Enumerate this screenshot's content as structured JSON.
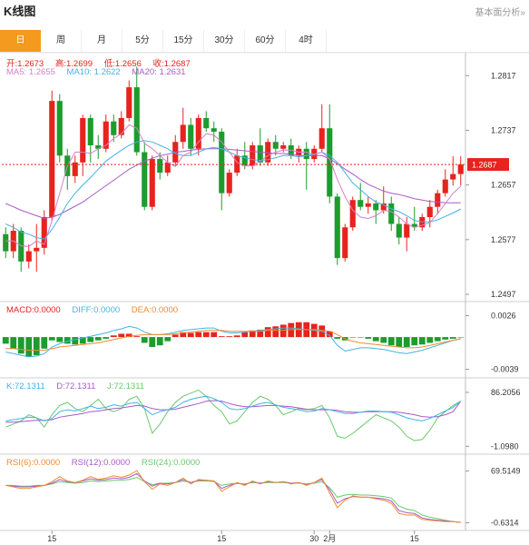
{
  "header": {
    "title": "K线图",
    "analysis_link": "基本面分析»"
  },
  "tabs": [
    "日",
    "周",
    "月",
    "5分",
    "15分",
    "30分",
    "60分",
    "4时"
  ],
  "active_tab": 0,
  "colors": {
    "up": "#e8221d",
    "down": "#1c9c2c",
    "ma5": "#d580c8",
    "ma10": "#45b3e3",
    "ma20": "#a95ac8",
    "macd": "#e8221d",
    "diff": "#45b3e3",
    "dea": "#f08a30",
    "k": "#45b3e3",
    "d": "#a95ac8",
    "j": "#6cc86c",
    "rsi6": "#f08a30",
    "rsi12": "#a95ac8",
    "rsi24": "#6cc86c",
    "accent": "#f39a1f"
  },
  "price_legend": {
    "open_label": "开:",
    "open": "1.2673",
    "high_label": "高:",
    "high": "1.2699",
    "low_label": "低:",
    "low": "1.2656",
    "close_label": "收:",
    "close": "1.2687",
    "ma5_label": "MA5:",
    "ma5": "1.2655",
    "ma10_label": "MA10:",
    "ma10": "1.2622",
    "ma20_label": "MA20:",
    "ma20": "1.2631"
  },
  "macd_legend": {
    "macd_label": "MACD:",
    "macd": "0.0000",
    "diff_label": "DIFF:",
    "diff": "0.0000",
    "dea_label": "DEA:",
    "dea": "0.0000"
  },
  "kdj_legend": {
    "k_label": "K:",
    "k": "72.1311",
    "d_label": "D:",
    "d": "72.1311",
    "j_label": "J:",
    "j": "72.1311"
  },
  "rsi_legend": {
    "rsi6_label": "RSI(6):",
    "rsi6": "0.0000",
    "rsi12_label": "RSI(12):",
    "rsi12": "0.0000",
    "rsi24_label": "RSI(24):",
    "rsi24": "0.0000"
  },
  "chart_data": [
    {
      "type": "candlestick",
      "title": "",
      "y_ticks": [
        1.2817,
        1.2737,
        1.2657,
        1.2577,
        1.2497
      ],
      "ylim": [
        1.2497,
        1.2832
      ],
      "current_price": 1.2687,
      "x_ticks": [
        "15",
        "15",
        "30",
        "2月",
        "15"
      ],
      "x_tick_index": [
        6,
        28,
        40,
        42,
        53
      ],
      "candles": [
        [
          1.2585,
          1.256,
          1.2595,
          1.255
        ],
        [
          1.256,
          1.259,
          1.26,
          1.255
        ],
        [
          1.259,
          1.2545,
          1.2595,
          1.253
        ],
        [
          1.2545,
          1.256,
          1.257,
          1.2535
        ],
        [
          1.256,
          1.2565,
          1.26,
          1.253
        ],
        [
          1.2565,
          1.261,
          1.262,
          1.2555
        ],
        [
          1.261,
          1.278,
          1.2795,
          1.2605
        ],
        [
          1.278,
          1.27,
          1.279,
          1.269
        ],
        [
          1.27,
          1.267,
          1.271,
          1.265
        ],
        [
          1.267,
          1.269,
          1.27,
          1.266
        ],
        [
          1.269,
          1.2755,
          1.276,
          1.267
        ],
        [
          1.2755,
          1.2715,
          1.276,
          1.269
        ],
        [
          1.2715,
          1.271,
          1.273,
          1.2695
        ],
        [
          1.271,
          1.275,
          1.276,
          1.2705
        ],
        [
          1.275,
          1.273,
          1.276,
          1.272
        ],
        [
          1.273,
          1.2755,
          1.2765,
          1.2725
        ],
        [
          1.2755,
          1.28,
          1.281,
          1.275
        ],
        [
          1.28,
          1.2705,
          1.283,
          1.27
        ],
        [
          1.2705,
          1.2625,
          1.272,
          1.262
        ],
        [
          1.2625,
          1.2695,
          1.27,
          1.262
        ],
        [
          1.2695,
          1.2675,
          1.2705,
          1.2665
        ],
        [
          1.2675,
          1.269,
          1.27,
          1.267
        ],
        [
          1.269,
          1.272,
          1.273,
          1.2685
        ],
        [
          1.272,
          1.2745,
          1.277,
          1.271
        ],
        [
          1.2745,
          1.271,
          1.2755,
          1.27
        ],
        [
          1.271,
          1.2755,
          1.276,
          1.27
        ],
        [
          1.2755,
          1.274,
          1.2765,
          1.2735
        ],
        [
          1.274,
          1.2735,
          1.275,
          1.272
        ],
        [
          1.2735,
          1.2645,
          1.274,
          1.262
        ],
        [
          1.2645,
          1.2675,
          1.268,
          1.264
        ],
        [
          1.2675,
          1.27,
          1.271,
          1.267
        ],
        [
          1.27,
          1.2685,
          1.272,
          1.268
        ],
        [
          1.2685,
          1.2715,
          1.272,
          1.268
        ],
        [
          1.2715,
          1.269,
          1.274,
          1.2685
        ],
        [
          1.269,
          1.272,
          1.2725,
          1.2685
        ],
        [
          1.272,
          1.271,
          1.273,
          1.27
        ],
        [
          1.271,
          1.2715,
          1.272,
          1.2705
        ],
        [
          1.2715,
          1.27,
          1.2725,
          1.2695
        ],
        [
          1.27,
          1.271,
          1.2715,
          1.269
        ],
        [
          1.271,
          1.2695,
          1.272,
          1.265
        ],
        [
          1.2695,
          1.271,
          1.2715,
          1.269
        ],
        [
          1.271,
          1.274,
          1.2775,
          1.2705
        ],
        [
          1.274,
          1.264,
          1.2775,
          1.263
        ],
        [
          1.264,
          1.255,
          1.2645,
          1.254
        ],
        [
          1.255,
          1.2595,
          1.26,
          1.2545
        ],
        [
          1.2595,
          1.2635,
          1.264,
          1.259
        ],
        [
          1.2635,
          1.2625,
          1.266,
          1.262
        ],
        [
          1.2625,
          1.263,
          1.264,
          1.2615
        ],
        [
          1.263,
          1.262,
          1.2635,
          1.26
        ],
        [
          1.262,
          1.263,
          1.2655,
          1.2615
        ],
        [
          1.263,
          1.26,
          1.264,
          1.259
        ],
        [
          1.26,
          1.258,
          1.261,
          1.257
        ],
        [
          1.258,
          1.26,
          1.261,
          1.256
        ],
        [
          1.26,
          1.2595,
          1.2625,
          1.259
        ],
        [
          1.2595,
          1.261,
          1.2615,
          1.259
        ],
        [
          1.261,
          1.2625,
          1.2635,
          1.2595
        ],
        [
          1.2625,
          1.2645,
          1.265,
          1.2615
        ],
        [
          1.2645,
          1.2665,
          1.268,
          1.264
        ],
        [
          1.2665,
          1.2673,
          1.2699,
          1.2656
        ],
        [
          1.2673,
          1.2687,
          1.2699,
          1.2656
        ]
      ],
      "ma5": [
        1.2575,
        1.2575,
        1.2568,
        1.2567,
        1.2575,
        1.257,
        1.2605,
        1.2645,
        1.2685,
        1.2705,
        1.2705,
        1.2703,
        1.271,
        1.2715,
        1.2725,
        1.2732,
        1.2745,
        1.274,
        1.2718,
        1.271,
        1.27,
        1.269,
        1.2684,
        1.27,
        1.2705,
        1.272,
        1.2732,
        1.273,
        1.272,
        1.2705,
        1.269,
        1.2685,
        1.2685,
        1.2692,
        1.27,
        1.2705,
        1.2708,
        1.2708,
        1.2705,
        1.2705,
        1.2702,
        1.2705,
        1.2695,
        1.2665,
        1.264,
        1.262,
        1.261,
        1.2608,
        1.2612,
        1.262,
        1.2618,
        1.261,
        1.26,
        1.2595,
        1.2598,
        1.2602,
        1.2615,
        1.263,
        1.2645,
        1.2655
      ],
      "ma10": [
        1.26,
        1.2595,
        1.2588,
        1.2585,
        1.258,
        1.2578,
        1.2592,
        1.261,
        1.263,
        1.2645,
        1.2657,
        1.2668,
        1.268,
        1.2692,
        1.27,
        1.2708,
        1.2715,
        1.272,
        1.2722,
        1.272,
        1.2715,
        1.271,
        1.2703,
        1.27,
        1.27,
        1.2705,
        1.271,
        1.2712,
        1.271,
        1.2705,
        1.27,
        1.2697,
        1.2694,
        1.2693,
        1.2694,
        1.2697,
        1.27,
        1.27,
        1.2698,
        1.27,
        1.2702,
        1.2705,
        1.27,
        1.269,
        1.2675,
        1.266,
        1.265,
        1.264,
        1.2632,
        1.2628,
        1.2622,
        1.2618,
        1.2612,
        1.2605,
        1.2603,
        1.2603,
        1.2606,
        1.2611,
        1.2616,
        1.2622
      ],
      "ma20": [
        1.263,
        1.2625,
        1.262,
        1.2616,
        1.2612,
        1.2608,
        1.261,
        1.2614,
        1.262,
        1.2626,
        1.2632,
        1.264,
        1.2648,
        1.2656,
        1.2664,
        1.2672,
        1.268,
        1.2686,
        1.2692,
        1.2696,
        1.27,
        1.2702,
        1.2705,
        1.2706,
        1.2708,
        1.2709,
        1.271,
        1.271,
        1.271,
        1.2709,
        1.2708,
        1.2707,
        1.2706,
        1.2705,
        1.2704,
        1.2703,
        1.2703,
        1.2702,
        1.27,
        1.27,
        1.27,
        1.27,
        1.2695,
        1.2688,
        1.268,
        1.2673,
        1.2665,
        1.2658,
        1.2653,
        1.2648,
        1.2645,
        1.2643,
        1.264,
        1.2637,
        1.2635,
        1.2633,
        1.2632,
        1.2631,
        1.2631,
        1.2631
      ]
    },
    {
      "type": "bar",
      "title": "MACD",
      "y_ticks": [
        0.0026,
        -0.0039
      ],
      "ylim": [
        -0.0045,
        0.0032
      ],
      "macd": [
        -0.0008,
        -0.0014,
        -0.002,
        -0.0024,
        -0.0022,
        -0.0014,
        -0.0004,
        -0.0006,
        -0.0008,
        -0.0009,
        -0.0008,
        -0.0006,
        -0.0004,
        -0.0002,
        0.0002,
        0.0004,
        0.0004,
        0.0001,
        -0.0007,
        -0.0012,
        -0.001,
        -0.0005,
        0.0003,
        0.0006,
        0.0005,
        0.0006,
        0.0006,
        0.0006,
        0.0001,
        0.0001,
        0.0002,
        0.0006,
        0.0008,
        0.0009,
        0.0012,
        0.0013,
        0.0015,
        0.0017,
        0.0018,
        0.0018,
        0.0016,
        0.0014,
        0.0007,
        -0.0002,
        -0.0004,
        0.0,
        0.0,
        -0.0002,
        -0.0005,
        -0.0007,
        -0.001,
        -0.0012,
        -0.0012,
        -0.001,
        -0.0009,
        -0.0007,
        -0.0005,
        -0.0003,
        -0.0002,
        0.0
      ],
      "diff": [
        -0.0018,
        -0.002,
        -0.0022,
        -0.0024,
        -0.0023,
        -0.002,
        -0.0012,
        -0.0008,
        -0.0005,
        -0.0003,
        -0.0001,
        0.0001,
        0.0003,
        0.0005,
        0.0008,
        0.001,
        0.0013,
        0.0011,
        0.0006,
        0.0003,
        0.0003,
        0.0004,
        0.0006,
        0.0008,
        0.0009,
        0.001,
        0.0011,
        0.0011,
        0.0007,
        0.0005,
        0.0005,
        0.0006,
        0.0007,
        0.0008,
        0.0009,
        0.001,
        0.0011,
        0.0011,
        0.001,
        0.0009,
        0.0008,
        0.0007,
        0.0002,
        -0.001,
        -0.0017,
        -0.0015,
        -0.0013,
        -0.0013,
        -0.0014,
        -0.0015,
        -0.0017,
        -0.0019,
        -0.002,
        -0.0018,
        -0.0016,
        -0.0013,
        -0.001,
        -0.0007,
        -0.0004,
        -0.0002
      ],
      "dea": [
        -0.0014,
        -0.0014,
        -0.0015,
        -0.0016,
        -0.0016,
        -0.0016,
        -0.0014,
        -0.0012,
        -0.0011,
        -0.001,
        -0.0009,
        -0.0008,
        -0.0007,
        -0.0005,
        -0.0003,
        -0.0001,
        0.0001,
        0.0002,
        0.0003,
        0.0003,
        0.0003,
        0.0003,
        0.0004,
        0.0005,
        0.0006,
        0.0007,
        0.0008,
        0.0008,
        0.0008,
        0.0007,
        0.0007,
        0.0007,
        0.0007,
        0.0007,
        0.0008,
        0.0008,
        0.0008,
        0.0009,
        0.0009,
        0.0009,
        0.0009,
        0.0008,
        0.0007,
        0.0003,
        -0.0002,
        -0.0005,
        -0.0007,
        -0.0008,
        -0.0009,
        -0.001,
        -0.0011,
        -0.0012,
        -0.0013,
        -0.0013,
        -0.0012,
        -0.001,
        -0.0008,
        -0.0006,
        -0.0004,
        -0.0002
      ]
    },
    {
      "type": "line",
      "title": "KDJ",
      "y_ticks": [
        86.2056,
        -1.098
      ],
      "ylim": [
        -8,
        95
      ],
      "k": [
        40,
        42,
        44,
        46,
        45,
        40,
        44,
        55,
        58,
        56,
        60,
        64,
        60,
        62,
        66,
        64,
        68,
        70,
        60,
        50,
        55,
        58,
        62,
        70,
        75,
        78,
        80,
        76,
        70,
        60,
        58,
        60,
        64,
        68,
        70,
        66,
        62,
        60,
        58,
        55,
        56,
        60,
        58,
        55,
        52,
        52,
        54,
        56,
        56,
        55,
        54,
        50,
        45,
        42,
        40,
        44,
        50,
        56,
        62,
        72
      ],
      "d": [
        38,
        38,
        39,
        40,
        41,
        41,
        42,
        46,
        48,
        50,
        52,
        55,
        56,
        58,
        60,
        61,
        63,
        65,
        64,
        60,
        58,
        58,
        59,
        62,
        65,
        68,
        72,
        73,
        72,
        68,
        65,
        63,
        63,
        64,
        65,
        65,
        64,
        63,
        61,
        59,
        58,
        58,
        58,
        57,
        55,
        54,
        54,
        55,
        55,
        55,
        55,
        54,
        52,
        50,
        47,
        46,
        47,
        50,
        55,
        72
      ],
      "j": [
        30,
        35,
        40,
        50,
        45,
        30,
        50,
        65,
        70,
        60,
        55,
        65,
        75,
        60,
        55,
        60,
        75,
        80,
        60,
        20,
        35,
        55,
        70,
        80,
        85,
        90,
        80,
        65,
        55,
        35,
        40,
        55,
        70,
        80,
        75,
        65,
        50,
        55,
        60,
        58,
        60,
        65,
        45,
        15,
        12,
        20,
        30,
        40,
        50,
        45,
        40,
        30,
        15,
        8,
        10,
        25,
        45,
        55,
        65,
        72
      ]
    },
    {
      "type": "line",
      "title": "RSI",
      "y_ticks": [
        69.5149,
        -0.6314
      ],
      "ylim": [
        -6,
        80
      ],
      "rsi6": [
        50,
        48,
        46,
        46,
        48,
        50,
        55,
        62,
        56,
        54,
        57,
        62,
        58,
        60,
        63,
        61,
        64,
        70,
        55,
        45,
        52,
        50,
        54,
        60,
        52,
        58,
        57,
        56,
        42,
        48,
        54,
        50,
        56,
        52,
        56,
        54,
        55,
        52,
        54,
        50,
        54,
        60,
        40,
        20,
        30,
        36,
        34,
        34,
        32,
        30,
        26,
        12,
        10,
        10,
        4,
        3,
        2,
        1,
        1,
        0
      ],
      "rsi12": [
        50,
        49,
        48,
        48,
        49,
        50,
        53,
        58,
        55,
        54,
        56,
        59,
        57,
        58,
        60,
        59,
        61,
        66,
        56,
        49,
        53,
        52,
        54,
        58,
        54,
        57,
        57,
        56,
        46,
        50,
        53,
        51,
        55,
        53,
        55,
        54,
        55,
        53,
        54,
        51,
        54,
        58,
        44,
        26,
        32,
        35,
        34,
        34,
        33,
        32,
        29,
        16,
        13,
        12,
        6,
        4,
        3,
        2,
        1,
        0
      ],
      "rsi24": [
        50,
        50,
        49,
        49,
        50,
        50,
        52,
        55,
        54,
        53,
        54,
        56,
        55,
        56,
        57,
        57,
        58,
        61,
        55,
        51,
        53,
        53,
        54,
        56,
        54,
        56,
        56,
        55,
        50,
        52,
        53,
        52,
        54,
        53,
        54,
        54,
        54,
        53,
        53,
        52,
        53,
        55,
        47,
        34,
        37,
        38,
        37,
        37,
        36,
        35,
        33,
        22,
        18,
        16,
        10,
        7,
        5,
        3,
        1,
        0
      ]
    }
  ]
}
